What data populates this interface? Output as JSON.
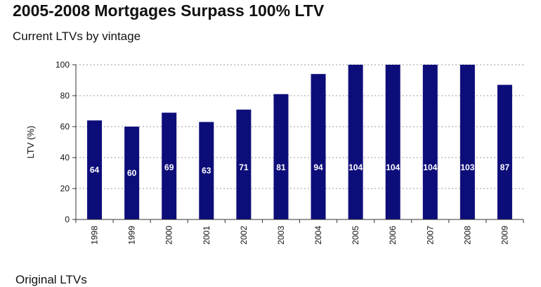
{
  "header": {
    "title": "2005-2008 Mortgages Surpass 100% LTV",
    "subtitle": "Current LTVs by vintage"
  },
  "footer": {
    "text": "Original LTVs"
  },
  "colors": {
    "bar": "#0d0d7a",
    "grid": "#9a9a9a",
    "axis": "#333333"
  },
  "chart_data": {
    "type": "bar",
    "title": "Current LTVs by vintage",
    "xlabel": "",
    "ylabel": "LTV (%)",
    "ylim": [
      0,
      100
    ],
    "yticks": [
      0,
      20,
      40,
      60,
      80,
      100
    ],
    "grid": true,
    "categories": [
      "1998",
      "1999",
      "2000",
      "2001",
      "2002",
      "2003",
      "2004",
      "2005",
      "2006",
      "2007",
      "2008",
      "2009"
    ],
    "values": [
      64,
      60,
      69,
      63,
      71,
      81,
      94,
      104,
      104,
      104,
      103,
      87
    ],
    "data_labels": [
      "64",
      "60",
      "69",
      "63",
      "71",
      "81",
      "94",
      "104",
      "104",
      "104",
      "103",
      "87"
    ]
  }
}
